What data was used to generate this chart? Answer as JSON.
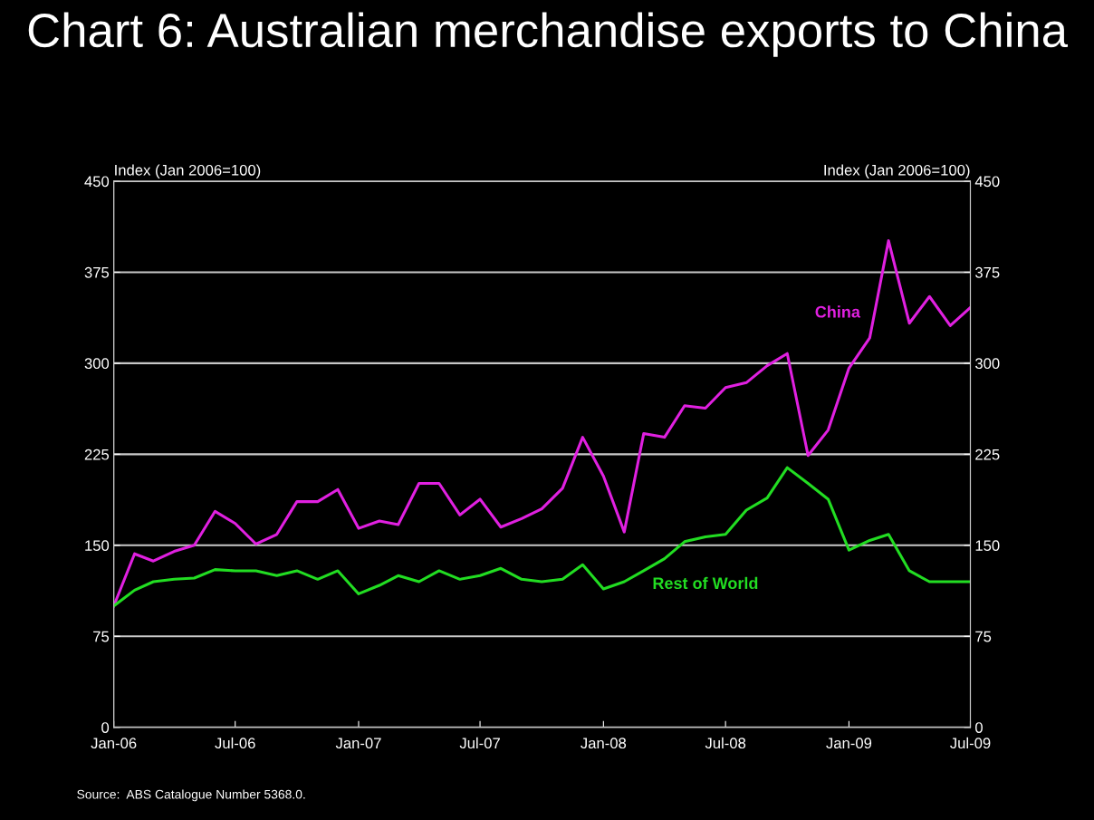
{
  "chart_data": {
    "type": "line",
    "title": "Chart 6: Australian merchandise exports to China",
    "ylabel": "Index (Jan 2006=100)",
    "y2label": "Index (Jan 2006=100)",
    "x": [
      "2006-01",
      "2006-02",
      "2006-03",
      "2006-04",
      "2006-05",
      "2006-06",
      "2006-07",
      "2006-08",
      "2006-09",
      "2006-10",
      "2006-11",
      "2006-12",
      "2007-01",
      "2007-02",
      "2007-03",
      "2007-04",
      "2007-05",
      "2007-06",
      "2007-07",
      "2007-08",
      "2007-09",
      "2007-10",
      "2007-11",
      "2007-12",
      "2008-01",
      "2008-02",
      "2008-03",
      "2008-04",
      "2008-05",
      "2008-06",
      "2008-07",
      "2008-08",
      "2008-09",
      "2008-10",
      "2008-11",
      "2008-12",
      "2009-01",
      "2009-02",
      "2009-03",
      "2009-04",
      "2009-05",
      "2009-06",
      "2009-07"
    ],
    "series": [
      {
        "name": "China",
        "color": "#e020e0",
        "values": [
          100,
          143,
          137,
          145,
          150,
          178,
          168,
          151,
          159,
          186,
          186,
          196,
          164,
          170,
          167,
          201,
          201,
          175,
          188,
          165,
          172,
          180,
          197,
          239,
          207,
          161,
          242,
          239,
          265,
          263,
          280,
          284,
          298,
          308,
          224,
          245,
          296,
          321,
          401,
          333,
          355,
          331,
          346
        ]
      },
      {
        "name": "Rest of World",
        "color": "#22dd22",
        "values": [
          100,
          113,
          120,
          122,
          123,
          130,
          129,
          129,
          125,
          129,
          122,
          129,
          110,
          117,
          125,
          120,
          129,
          122,
          125,
          131,
          122,
          120,
          122,
          134,
          114,
          120,
          129,
          139,
          153,
          157,
          159,
          179,
          189,
          214,
          201,
          188,
          146,
          154,
          159,
          129,
          120,
          120,
          120
        ]
      }
    ],
    "xlim": [
      "2006-01",
      "2009-07"
    ],
    "xticks": [
      {
        "value": "2006-01",
        "label": "Jan-06"
      },
      {
        "value": "2006-07",
        "label": "Jul-06"
      },
      {
        "value": "2007-01",
        "label": "Jan-07"
      },
      {
        "value": "2007-07",
        "label": "Jul-07"
      },
      {
        "value": "2008-01",
        "label": "Jan-08"
      },
      {
        "value": "2008-07",
        "label": "Jul-08"
      },
      {
        "value": "2009-01",
        "label": "Jan-09"
      },
      {
        "value": "2009-07",
        "label": "Jul-09"
      }
    ],
    "ylim": [
      0,
      450
    ],
    "yticks": [
      0,
      75,
      150,
      225,
      300,
      375,
      450
    ],
    "y2lim": [
      0,
      450
    ],
    "y2ticks": [
      0,
      75,
      150,
      225,
      300,
      375,
      450
    ],
    "grid": "y",
    "legend": false,
    "marker": "none",
    "line_style": "solid",
    "annotations": [
      "Source:  ABS Catalogue Number 5368.0."
    ]
  }
}
